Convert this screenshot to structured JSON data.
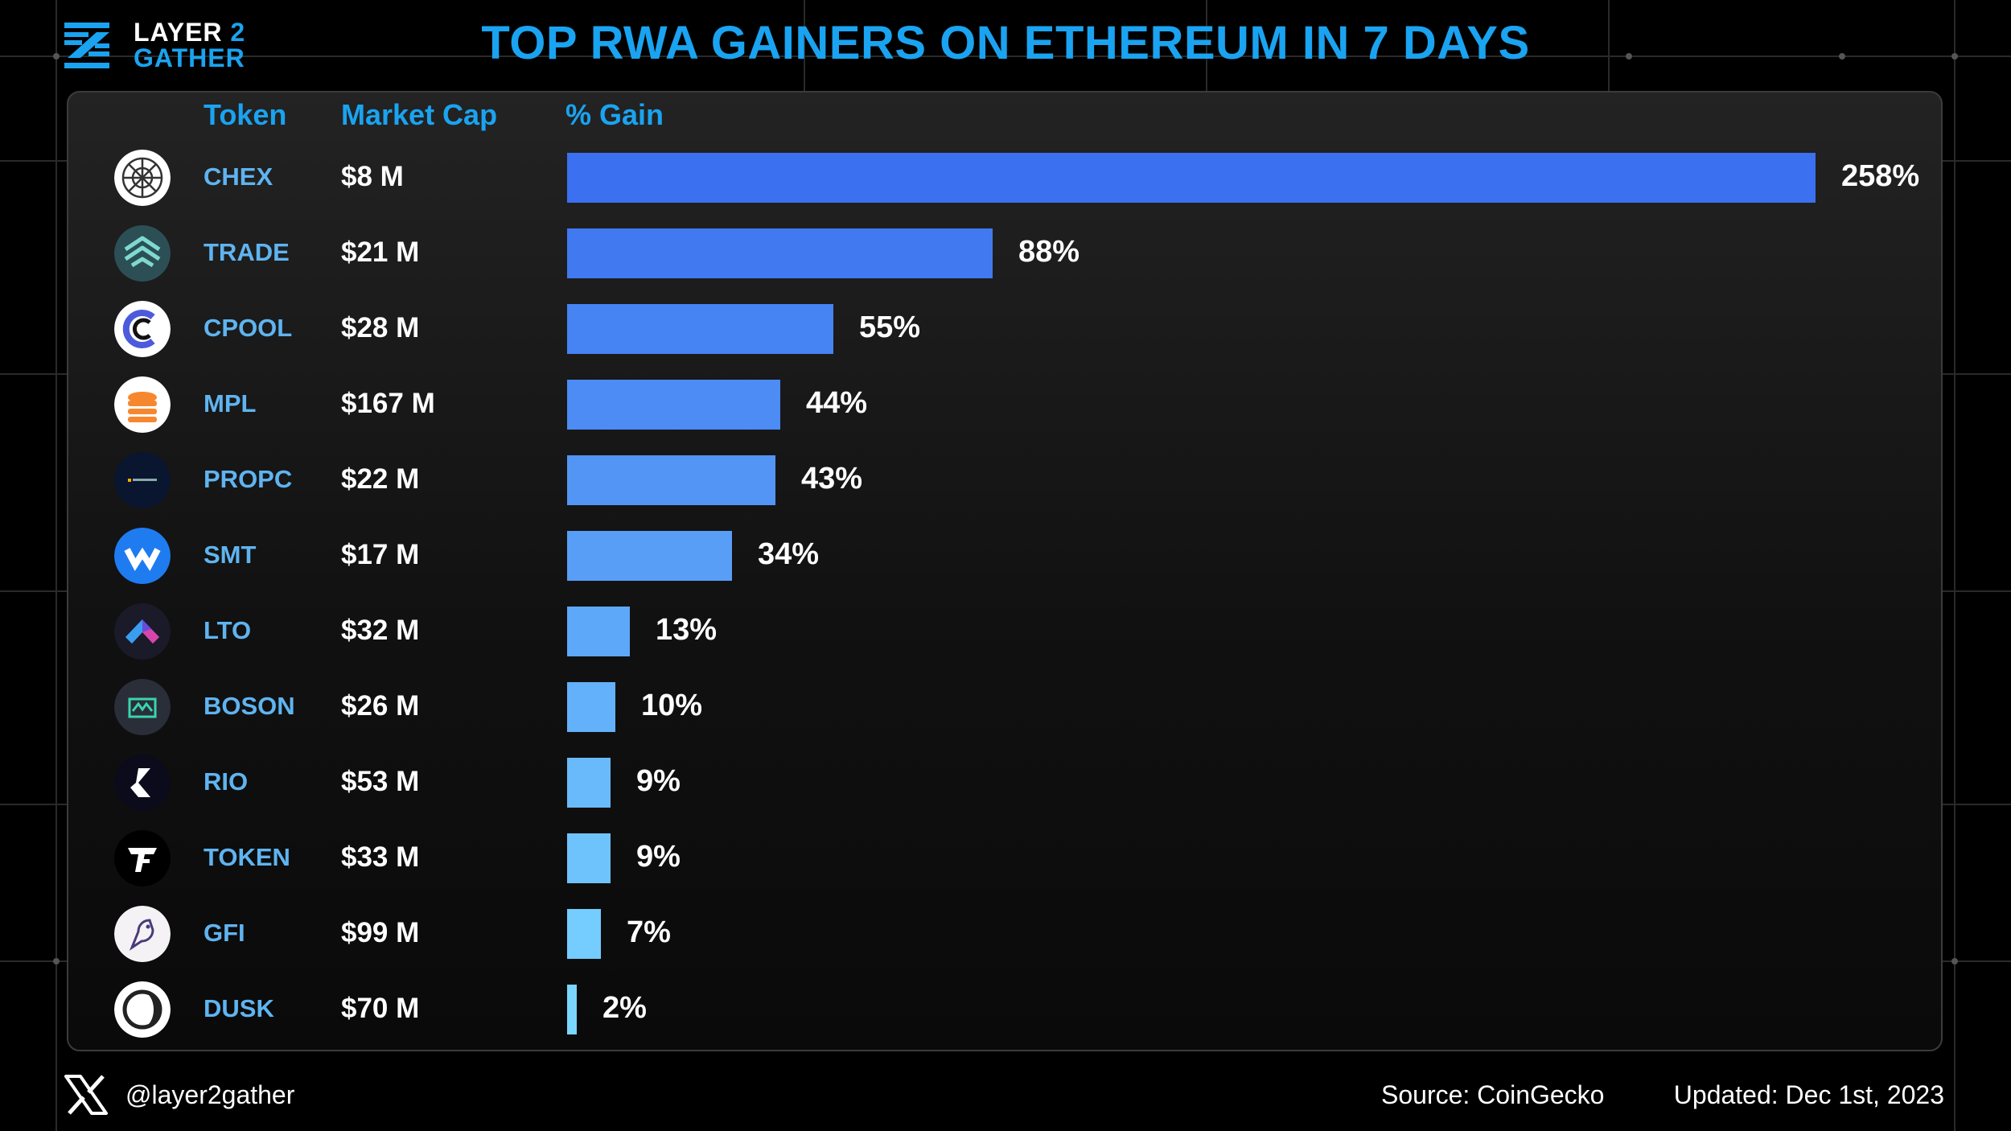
{
  "brand": {
    "line1": "LAYER",
    "line1_num": "2",
    "line2": "GATHER"
  },
  "title": "TOP RWA GAINERS ON ETHEREUM IN 7 DAYS",
  "headers": {
    "token": "Token",
    "market_cap": "Market Cap",
    "gain": "% Gain"
  },
  "colors": {
    "accent": "#1aa3f0",
    "bar_top": "#3b70f0",
    "bar_bottom": "#7ad6ff",
    "token_text": "#5fb4f0"
  },
  "chart_data": {
    "type": "bar",
    "orientation": "horizontal",
    "title": "TOP RWA GAINERS ON ETHEREUM IN 7 DAYS",
    "categories": [
      "CHEX",
      "TRADE",
      "CPOOL",
      "MPL",
      "PROPC",
      "SMT",
      "LTO",
      "BOSON",
      "RIO",
      "TOKEN",
      "GFI",
      "DUSK"
    ],
    "market_caps": [
      "$8 M",
      "$21 M",
      "$28 M",
      "$167 M",
      "$22 M",
      "$17 M",
      "$32 M",
      "$26 M",
      "$53 M",
      "$33 M",
      "$99 M",
      "$70 M"
    ],
    "values": [
      258,
      88,
      55,
      44,
      43,
      34,
      13,
      10,
      9,
      9,
      7,
      2
    ],
    "value_labels": [
      "258%",
      "88%",
      "55%",
      "44%",
      "43%",
      "34%",
      "13%",
      "10%",
      "9%",
      "9%",
      "7%",
      "2%"
    ],
    "icons": [
      "chex-icon",
      "trade-icon",
      "cpool-icon",
      "mpl-icon",
      "propc-icon",
      "smt-icon",
      "lto-icon",
      "boson-icon",
      "rio-icon",
      "token-icon",
      "gfi-icon",
      "dusk-icon"
    ],
    "grid": false
  },
  "footer": {
    "handle": "@layer2gather",
    "source": "Source: CoinGecko",
    "updated": "Updated: Dec 1st, 2023",
    "social_icon": "x-logo-icon"
  }
}
